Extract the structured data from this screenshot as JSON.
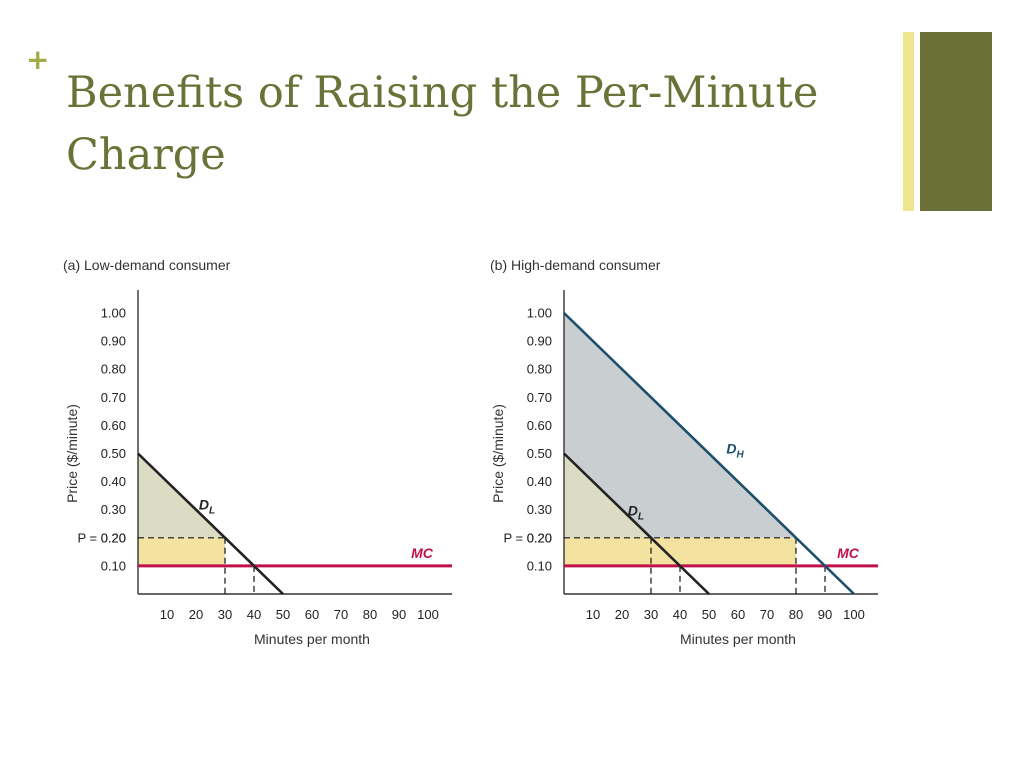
{
  "slide": {
    "bullet_symbol": "+",
    "title_line1": "Benefits of Raising the Per-Minute",
    "title_line2": "Charge"
  },
  "colors": {
    "title": "#6b7237",
    "bullet": "#a3ad45",
    "accent_light": "#efe58e",
    "accent_dark": "#6b7039",
    "demand_high": "#1c4f6b",
    "demand_low": "#222222",
    "mc": "#c0104a",
    "consumer_surplus_low": "#dcdcc4",
    "consumer_surplus_high": "#c9ced0",
    "rectangle_fill": "#f3e2a0"
  },
  "chart_data": [
    {
      "type": "line",
      "panel_title": "(a) Low-demand consumer",
      "xlabel": "Minutes per month",
      "ylabel": "Price ($/minute)",
      "xlim": [
        0,
        105
      ],
      "ylim": [
        0,
        1.05
      ],
      "x_ticks": [
        "10",
        "20",
        "30",
        "40",
        "50",
        "60",
        "70",
        "80",
        "90",
        "100"
      ],
      "y_ticks": [
        "1.00",
        "0.90",
        "0.80",
        "0.70",
        "0.60",
        "0.50",
        "0.40",
        "0.30",
        "0.20",
        "0.10"
      ],
      "price_label": "P = 0.20",
      "price": 0.2,
      "mc": 0.1,
      "mc_label": "MC",
      "series": [
        {
          "name": "DL",
          "label_main": "D",
          "label_sub": "L",
          "x": [
            0,
            50
          ],
          "y": [
            0.5,
            0
          ]
        }
      ],
      "shaded_triangle": {
        "x": [
          0,
          30,
          0
        ],
        "y": [
          0.5,
          0.2,
          0.2
        ]
      },
      "shaded_rectangle": {
        "x": [
          0,
          30
        ],
        "y": [
          0.1,
          0.2
        ]
      },
      "dashed_verticals": [
        30,
        40
      ]
    },
    {
      "type": "line",
      "panel_title": "(b) High-demand consumer",
      "xlabel": "Minutes per month",
      "ylabel": "Price ($/minute)",
      "xlim": [
        0,
        105
      ],
      "ylim": [
        0,
        1.05
      ],
      "x_ticks": [
        "10",
        "20",
        "30",
        "40",
        "50",
        "60",
        "70",
        "80",
        "90",
        "100"
      ],
      "y_ticks": [
        "1.00",
        "0.90",
        "0.80",
        "0.70",
        "0.60",
        "0.50",
        "0.40",
        "0.30",
        "0.20",
        "0.10"
      ],
      "price_label": "P = 0.20",
      "price": 0.2,
      "mc": 0.1,
      "mc_label": "MC",
      "series": [
        {
          "name": "DH",
          "label_main": "D",
          "label_sub": "H",
          "x": [
            0,
            100
          ],
          "y": [
            1.0,
            0
          ]
        },
        {
          "name": "DL",
          "label_main": "D",
          "label_sub": "L",
          "x": [
            0,
            50
          ],
          "y": [
            0.5,
            0
          ]
        }
      ],
      "shaded_triangle": {
        "x": [
          0,
          80,
          0
        ],
        "y": [
          1.0,
          0.2,
          0.2
        ]
      },
      "shaded_rectangle": {
        "x": [
          0,
          80
        ],
        "y": [
          0.1,
          0.2
        ]
      },
      "dashed_verticals": [
        30,
        40,
        80,
        90
      ]
    }
  ]
}
